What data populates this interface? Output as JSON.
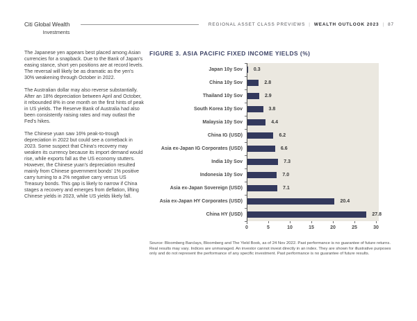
{
  "header": {
    "brand_line1": "Citi Global Wealth",
    "brand_line2": "Investments",
    "section": "REGIONAL ASSET CLASS PREVIEWS",
    "separator": "|",
    "report_title": "WEALTH OUTLOOK",
    "report_year": "2023",
    "page_number": "87"
  },
  "article": {
    "paragraphs": [
      "The Japanese yen appears best placed among Asian currencies for a snapback. Due to the Bank of Japan's easing stance, short yen positions are at record levels. The reversal will likely be as dramatic as the yen's 30% weakening through October in 2022.",
      "The Australian dollar may also reverse substantially. After an 18% depreciation between April and October, it rebounded 8% in one month on the first hints of peak in US yields. The Reserve Bank of Australia had also been consistently raising rates and may outlast the Fed's hikes.",
      "The Chinese yuan saw 16% peak-to-trough depreciation in 2022 but could see a comeback in 2023. Some suspect that China's recovery may weaken its currency because its import demand would rise, while exports fall as the US economy stutters. However, the Chinese yuan's depreciation resulted mainly from Chinese government bonds' 1% positive carry turning to a 2% negative carry versus US Treasury bonds. This gap is likely to narrow if China stages a recovery and emerges from deflation, lifting Chinese yields in 2023, while US yields likely fall."
    ]
  },
  "chart": {
    "source": "Source: Bloomberg Barclays, Bloomberg and The Yield Book, as of 24 Nov 2022. Past performance is no guarantee of future returns. Real results may vary. Indices are unmanaged. An investor cannot invest directly in an index. They are shown for illustrative purposes only and do not represent the performance of any specific investment. Past performance is no guarantee of future results."
  },
  "chart_data": {
    "type": "bar",
    "orientation": "horizontal",
    "title": "FIGURE 3. ASIA PACIFIC FIXED INCOME YIELDS (%)",
    "categories": [
      "Japan 10y Sov",
      "China 10y Sov",
      "Thailand 10y Sov",
      "South Korea 10y Sov",
      "Malaysia 10y Sov",
      "China IG (USD)",
      "Asia ex-Japan IG Corporates (USD)",
      "India 10y Sov",
      "Indonesia 10y Sov",
      "Asia ex-Japan Sovereign (USD)",
      "Asia ex-Japan HY Corporates (USD)",
      "China HY (USD)"
    ],
    "values": [
      0.3,
      2.8,
      2.9,
      3.8,
      4.4,
      6.2,
      6.6,
      7.3,
      7.0,
      7.1,
      20.4,
      27.8
    ],
    "value_labels": [
      "0.3",
      "2.8",
      "2.9",
      "3.8",
      "4.4",
      "6.2",
      "6.6",
      "7.3",
      "7.0",
      "7.1",
      "20.4",
      "27.8"
    ],
    "xlim": [
      0,
      30
    ],
    "x_ticks": [
      0,
      5,
      10,
      15,
      20,
      25,
      30
    ],
    "grid": false,
    "legend": "none",
    "bar_color": "#33395D",
    "plot_bg": "#EBE8E0",
    "title_color": "#3C4265"
  }
}
